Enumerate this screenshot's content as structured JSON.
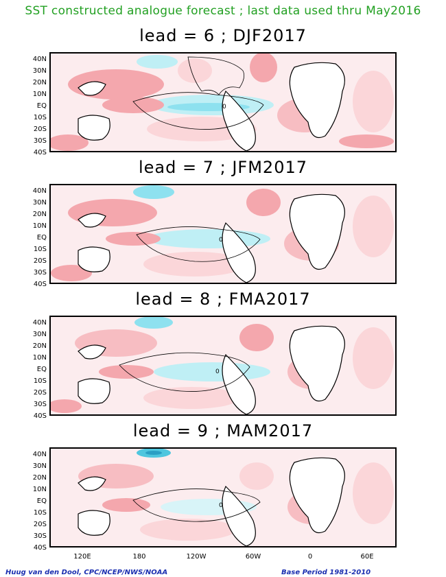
{
  "title": "SST constructed analogue forecast ; last data used thru May2016",
  "panels": [
    {
      "label": "lead = 6 ; DJF2017"
    },
    {
      "label": "lead = 7 ; JFM2017"
    },
    {
      "label": "lead = 8 ; FMA2017"
    },
    {
      "label": "lead = 9 ; MAM2017"
    }
  ],
  "lat_labels": [
    "40N",
    "30N",
    "20N",
    "10N",
    "EQ",
    "10S",
    "20S",
    "30S",
    "40S"
  ],
  "lon_labels": [
    "120E",
    "180",
    "120W",
    "60W",
    "0",
    "60E"
  ],
  "contour_label": "0",
  "footer": {
    "left": "Huug van den Dool, CPC/NCEP/NWS/NOAA",
    "right": "Base Period 1981-2010"
  },
  "colors": {
    "title": "#22a022",
    "warm": "#f4a7ad",
    "warm_light": "#fbd6d9",
    "cool": "#bfeff5",
    "cool_strong": "#63d3e6",
    "footer": "#1b2fb0"
  }
}
